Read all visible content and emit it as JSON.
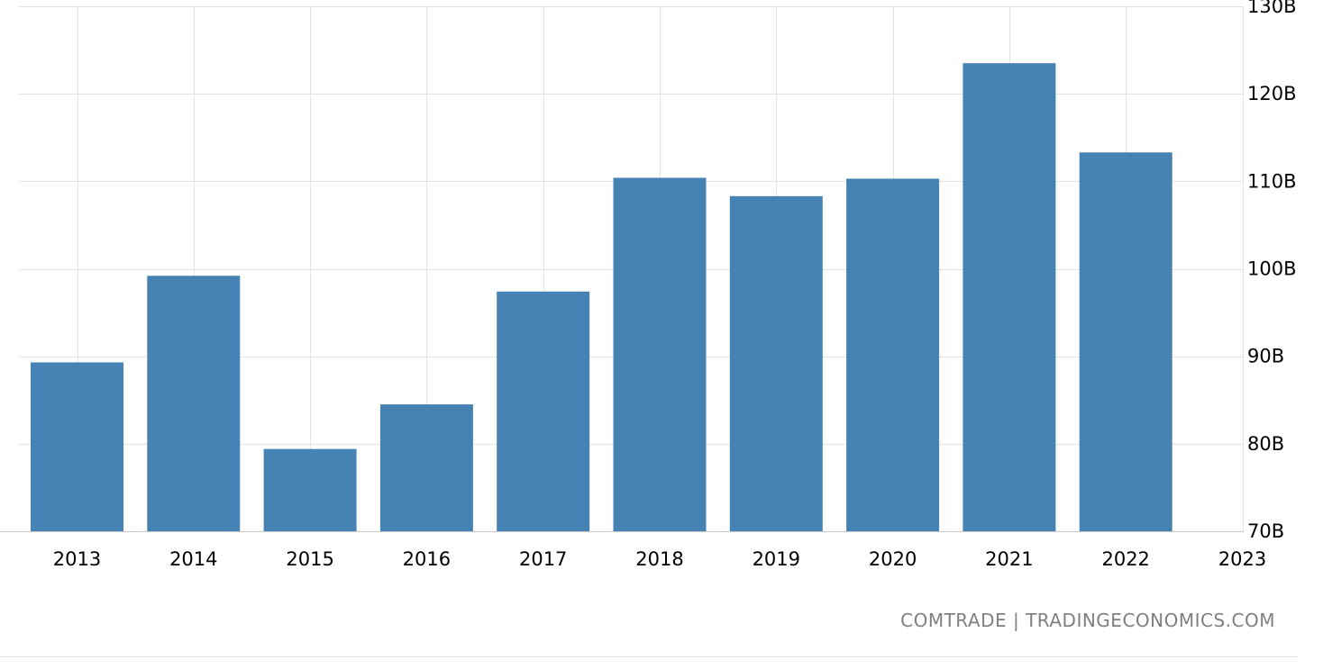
{
  "chart_data": {
    "type": "bar",
    "categories": [
      "2013",
      "2014",
      "2015",
      "2016",
      "2017",
      "2018",
      "2019",
      "2020",
      "2021",
      "2022"
    ],
    "x_tick_labels": [
      "2013",
      "2014",
      "2015",
      "2016",
      "2017",
      "2018",
      "2019",
      "2020",
      "2021",
      "2022",
      "2023"
    ],
    "values": [
      89.3,
      99.2,
      79.4,
      84.5,
      97.4,
      110.4,
      108.3,
      110.3,
      123.5,
      113.3
    ],
    "y_tick_values": [
      70,
      80,
      90,
      100,
      110,
      120,
      130
    ],
    "y_tick_labels": [
      "70B",
      "80B",
      "90B",
      "100B",
      "110B",
      "120B",
      "130B"
    ],
    "ylim": [
      70,
      130
    ],
    "y_axis_position": "right",
    "grid": true,
    "bar_color": "#4682b4",
    "grid_color": "#e3e3e3"
  },
  "source_text": "COMTRADE | TRADINGECONOMICS.COM"
}
